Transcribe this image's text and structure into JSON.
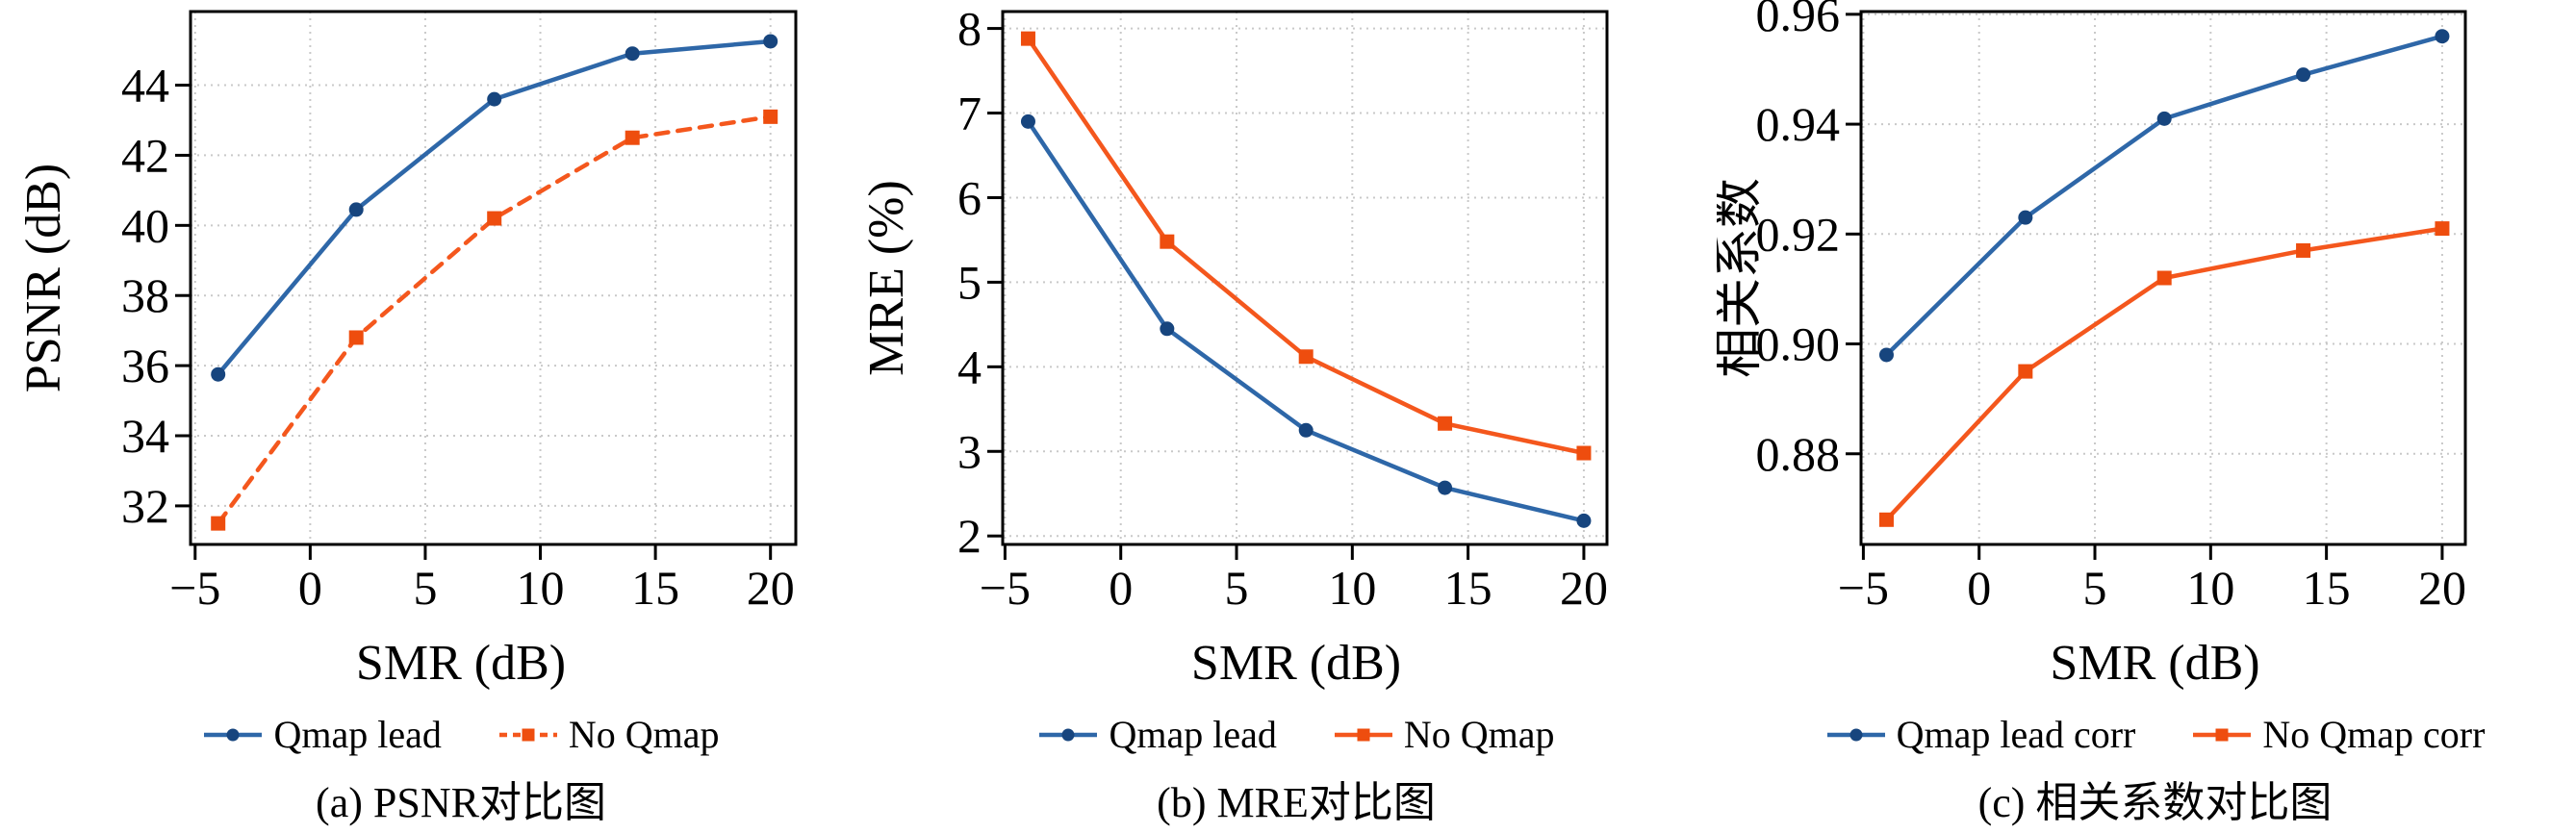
{
  "figure": {
    "background": "#ffffff"
  },
  "styles": {
    "grid_color": "#c9c9c9",
    "axis_color": "#000000",
    "tick_label_color": "#000000",
    "blue": "#2e67a8",
    "orange": "#f4571d"
  },
  "chart_data": [
    {
      "id": "a",
      "type": "line",
      "caption": "(a) PSNR对比图",
      "xlabel": "SMR (dB)",
      "ylabel": "PSNR (dB)",
      "x": [
        -4,
        2,
        8,
        14,
        20
      ],
      "series": [
        {
          "name": "Qmap lead",
          "color": "#2e67a8",
          "marker_color": "#17457e",
          "line": "solid",
          "marker": "circle",
          "values": [
            35.75,
            40.45,
            43.6,
            44.9,
            45.25
          ]
        },
        {
          "name": "No Qmap",
          "color": "#f4571d",
          "marker_color": "#ee4d0e",
          "line": "dashed",
          "marker": "square",
          "values": [
            31.5,
            36.8,
            40.2,
            42.5,
            43.1
          ]
        }
      ],
      "xlim": [
        -5.2,
        21.1
      ],
      "ylim": [
        30.9,
        46.1
      ],
      "xtick_values": [
        -5,
        0,
        5,
        10,
        15,
        20
      ],
      "xtick_labels": [
        "−5",
        "0",
        "5",
        "10",
        "15",
        "20"
      ],
      "ytick_values": [
        32,
        34,
        36,
        38,
        40,
        42,
        44
      ],
      "ytick_labels": [
        "32",
        "34",
        "36",
        "38",
        "40",
        "42",
        "44"
      ],
      "grid": true,
      "legend_position": "bottom"
    },
    {
      "id": "b",
      "type": "line",
      "caption": "(b) MRE对比图",
      "xlabel": "SMR (dB)",
      "ylabel": "MRE (%)",
      "x": [
        -4,
        2,
        8,
        14,
        20
      ],
      "series": [
        {
          "name": "Qmap lead",
          "color": "#2e67a8",
          "marker_color": "#17457e",
          "line": "solid",
          "marker": "circle",
          "values": [
            6.9,
            4.45,
            3.25,
            2.57,
            2.18
          ]
        },
        {
          "name": "No Qmap",
          "color": "#f4571d",
          "marker_color": "#ee4d0e",
          "line": "solid",
          "marker": "square",
          "values": [
            7.88,
            5.48,
            4.12,
            3.33,
            2.98
          ]
        }
      ],
      "xlim": [
        -5.1,
        21.0
      ],
      "ylim": [
        1.9,
        8.2
      ],
      "xtick_values": [
        -5,
        0,
        5,
        10,
        15,
        20
      ],
      "xtick_labels": [
        "−5",
        "0",
        "5",
        "10",
        "15",
        "20"
      ],
      "ytick_values": [
        2,
        3,
        4,
        5,
        6,
        7,
        8
      ],
      "ytick_labels": [
        "2",
        "3",
        "4",
        "5",
        "6",
        "7",
        "8"
      ],
      "grid": true,
      "legend_position": "bottom"
    },
    {
      "id": "c",
      "type": "line",
      "caption": "(c) 相关系数对比图",
      "xlabel": "SMR (dB)",
      "ylabel": "相关系数",
      "x": [
        -4,
        2,
        8,
        14,
        20
      ],
      "series": [
        {
          "name": "Qmap lead corr",
          "color": "#2e67a8",
          "marker_color": "#17457e",
          "line": "solid",
          "marker": "circle",
          "values": [
            0.898,
            0.923,
            0.941,
            0.949,
            0.956
          ]
        },
        {
          "name": "No Qmap corr",
          "color": "#f4571d",
          "marker_color": "#ee4d0e",
          "line": "solid",
          "marker": "square",
          "values": [
            0.868,
            0.895,
            0.912,
            0.917,
            0.921
          ]
        }
      ],
      "xlim": [
        -5.1,
        21.0
      ],
      "ylim": [
        0.8635,
        0.9605
      ],
      "xtick_values": [
        -5,
        0,
        5,
        10,
        15,
        20
      ],
      "xtick_labels": [
        "−5",
        "0",
        "5",
        "10",
        "15",
        "20"
      ],
      "ytick_values": [
        0.88,
        0.9,
        0.92,
        0.94,
        0.96
      ],
      "ytick_labels": [
        "0.88",
        "0.90",
        "0.92",
        "0.94",
        "0.96"
      ],
      "grid": true,
      "legend_position": "bottom"
    }
  ]
}
